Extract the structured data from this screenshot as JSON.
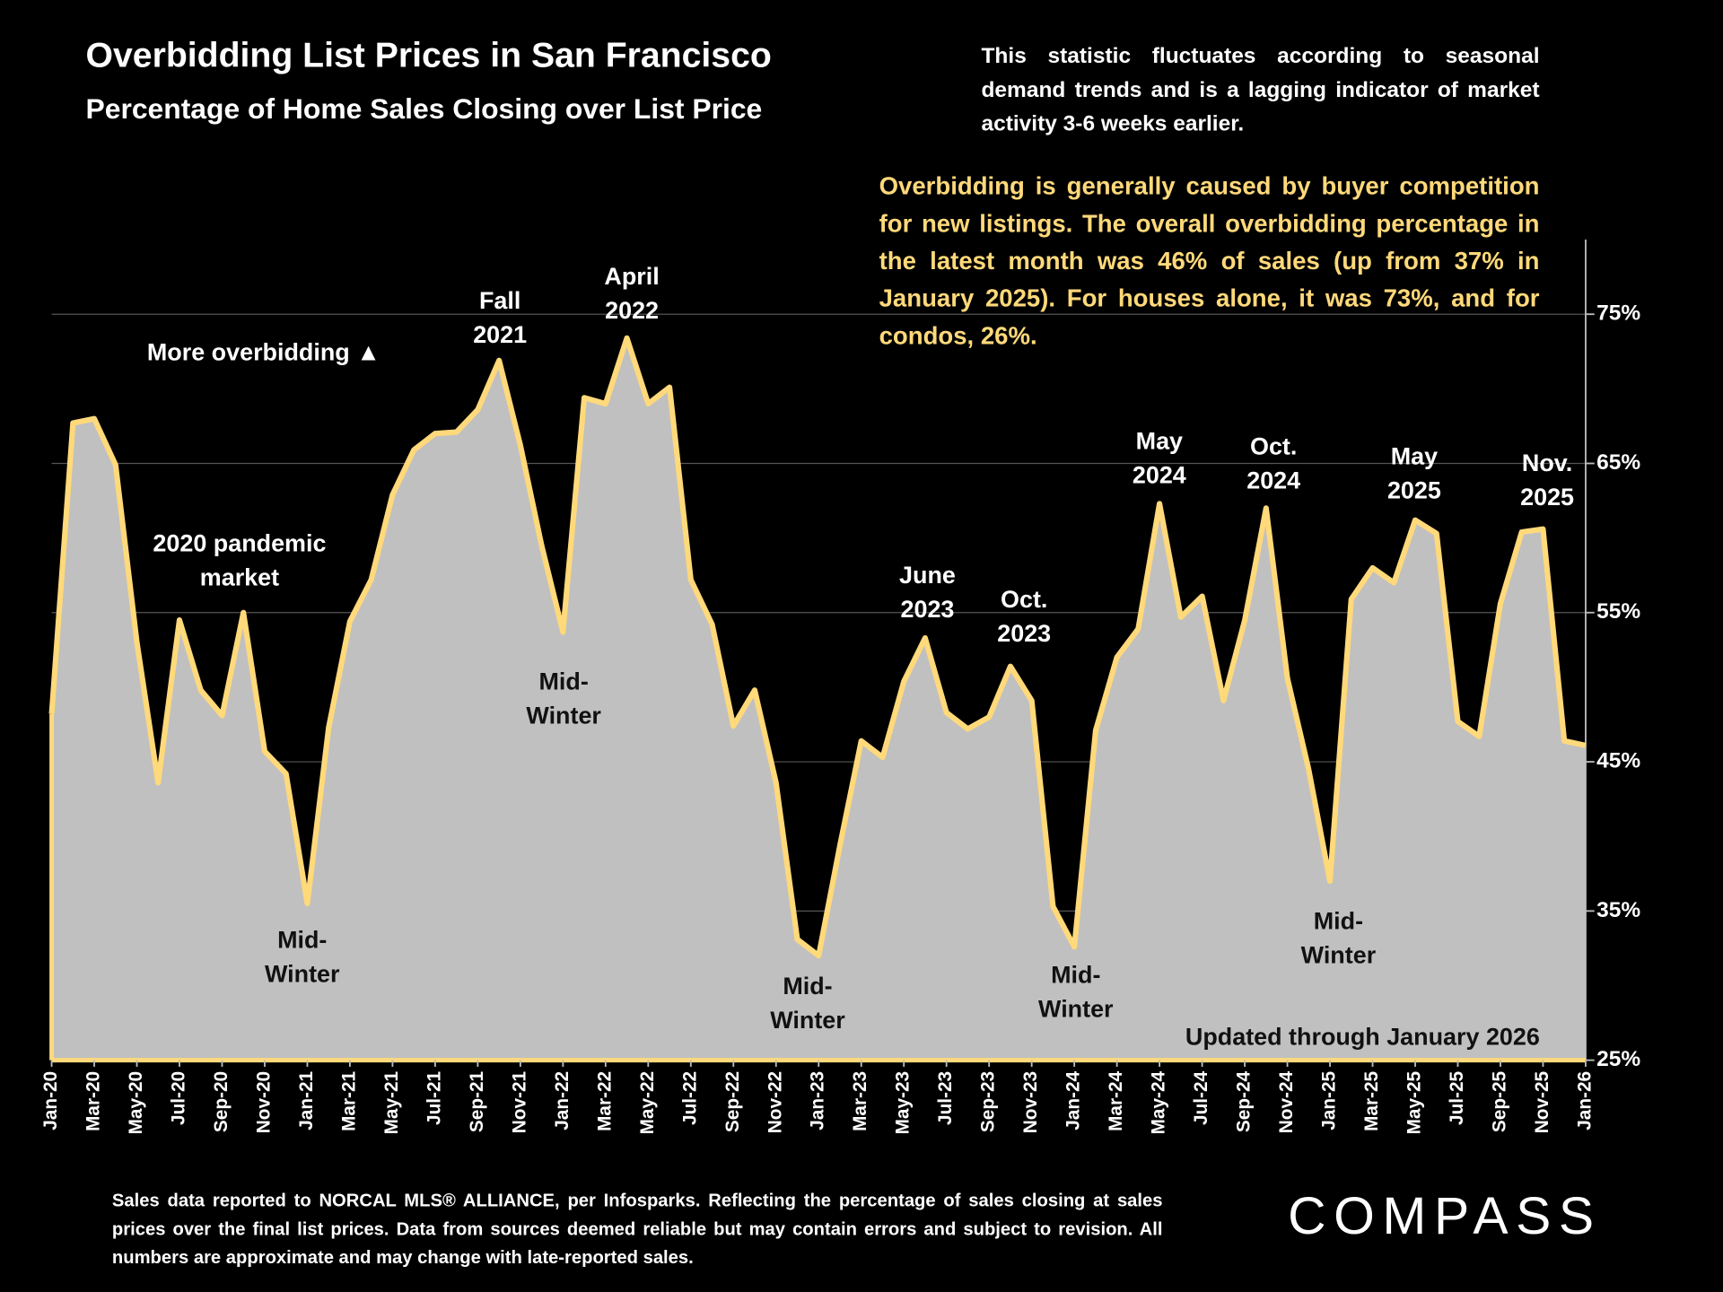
{
  "chart_data": {
    "type": "area",
    "title": "Overbidding List Prices in San Francisco",
    "subtitle": "Percentage of Home Sales Closing over List Price",
    "note": "This statistic fluctuates according to seasonal demand trends and is a lagging indicator of market activity 3-6 weeks earlier.",
    "highlight": "Overbidding is generally caused by buyer competition for new listings. The overall overbidding percentage in the latest month was 46% of sales (up from 37% in January 2025). For houses alone, it was 73%, and for condos, 26%.",
    "categories": [
      "Jan-20",
      null,
      "Mar-20",
      null,
      "May-20",
      null,
      "Jul-20",
      null,
      "Sep-20",
      null,
      "Nov-20",
      null,
      "Jan-21",
      null,
      "Mar-21",
      null,
      "May-21",
      null,
      "Jul-21",
      null,
      "Sep-21",
      null,
      "Nov-21",
      null,
      "Jan-22",
      null,
      "Mar-22",
      null,
      "May-22",
      null,
      "Jul-22",
      null,
      "Sep-22",
      null,
      "Nov-22",
      null,
      "Jan-23",
      null,
      "Mar-23",
      null,
      "May-23",
      null,
      "Jul-23",
      null,
      "Sep-23",
      null,
      "Nov-23",
      null,
      "Jan-24",
      null,
      "Mar-24",
      null,
      "May-24",
      null,
      "Jul-24",
      null,
      "Sep-24",
      null,
      "Nov-24",
      null,
      "Jan-25",
      null,
      "Mar-25",
      null,
      "May-25",
      null,
      "Jul-25",
      null,
      "Sep-25",
      null,
      "Nov-25",
      null,
      "Jan-26"
    ],
    "values": [
      48.2,
      67.7,
      68.0,
      64.9,
      53.0,
      43.6,
      54.5,
      49.8,
      48.1,
      55.0,
      45.7,
      44.2,
      35.5,
      47.3,
      54.4,
      57.2,
      62.9,
      65.9,
      67.0,
      67.1,
      68.6,
      71.9,
      66.2,
      59.5,
      53.7,
      69.4,
      69.0,
      73.4,
      69.0,
      70.1,
      57.2,
      54.2,
      47.4,
      49.8,
      43.6,
      33.1,
      32.0,
      39.4,
      46.4,
      45.3,
      50.4,
      53.3,
      48.3,
      47.2,
      48.0,
      51.4,
      49.1,
      35.3,
      32.6,
      47.1,
      52.0,
      53.9,
      62.3,
      54.7,
      56.1,
      49.1,
      54.5,
      62.0,
      50.6,
      44.5,
      37.0,
      55.9,
      58.0,
      57.0,
      61.2,
      60.3,
      47.7,
      46.7,
      55.6,
      60.4,
      60.6,
      46.4,
      46.1
    ],
    "color": "#ffd97a",
    "fill_color": "#c0c0c0",
    "ylim": [
      25,
      80
    ],
    "yticks": [
      {
        "value": 25,
        "label": "25%"
      },
      {
        "value": 35,
        "label": "35%"
      },
      {
        "value": 45,
        "label": "45%"
      },
      {
        "value": 55,
        "label": "55%"
      },
      {
        "value": 65,
        "label": "65%"
      },
      {
        "value": 75,
        "label": "75%"
      }
    ],
    "grid": true,
    "annotations": [
      {
        "lines": [
          "More overbidding ▲"
        ]
      },
      {
        "lines": [
          "2020 pandemic",
          "market"
        ]
      },
      {
        "lines": [
          "Mid-",
          "Winter"
        ]
      },
      {
        "lines": [
          "Fall",
          "2021"
        ]
      },
      {
        "lines": [
          "Mid-",
          "Winter"
        ]
      },
      {
        "lines": [
          "April",
          "2022"
        ]
      },
      {
        "lines": [
          "Mid-",
          "Winter"
        ]
      },
      {
        "lines": [
          "June",
          "2023"
        ]
      },
      {
        "lines": [
          "Oct.",
          "2023"
        ]
      },
      {
        "lines": [
          "Mid-",
          "Winter"
        ]
      },
      {
        "lines": [
          "May",
          "2024"
        ]
      },
      {
        "lines": [
          "Oct.",
          "2024"
        ]
      },
      {
        "lines": [
          "Mid-",
          "Winter"
        ]
      },
      {
        "lines": [
          "May",
          "2025"
        ]
      },
      {
        "lines": [
          "Nov.",
          "2025"
        ]
      },
      {
        "lines": [
          "Updated through January 2026"
        ]
      }
    ],
    "footnote": "Sales data reported to NORCAL MLS® ALLIANCE, per Infosparks. Reflecting the percentage of sales closing at sales prices over the final list prices. Data from sources deemed reliable but may contain errors and subject to revision. All numbers are approximate and may change with late-reported sales.",
    "logo": "COMPASS"
  }
}
